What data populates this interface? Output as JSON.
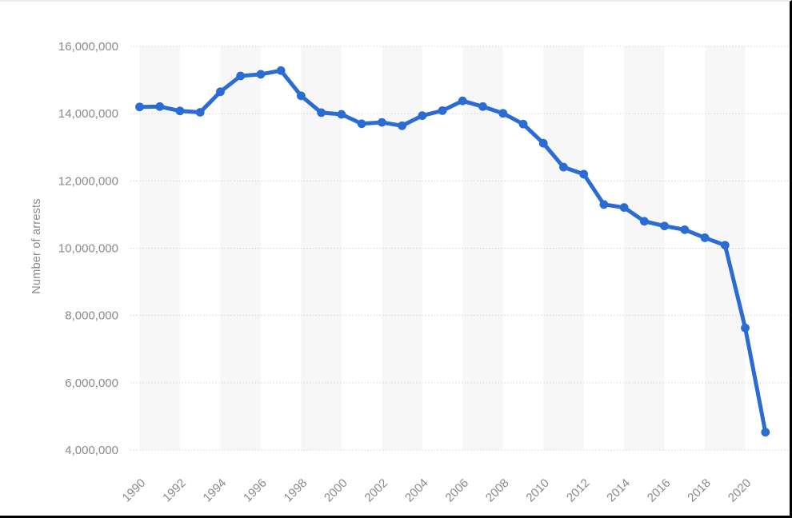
{
  "chart_data": {
    "type": "line",
    "title": "",
    "ylabel": "Number of arrests",
    "xlabel": "",
    "x": [
      1990,
      1991,
      1992,
      1993,
      1994,
      1995,
      1996,
      1997,
      1998,
      1999,
      2000,
      2001,
      2002,
      2003,
      2004,
      2005,
      2006,
      2007,
      2008,
      2009,
      2010,
      2011,
      2012,
      2013,
      2014,
      2015,
      2016,
      2017,
      2018,
      2019,
      2020,
      2021
    ],
    "series": [
      {
        "name": "Number of arrests",
        "color": "#2b6cd4",
        "values": [
          14200000,
          14210000,
          14080000,
          14040000,
          14650000,
          15120000,
          15170000,
          15280000,
          14530000,
          14030000,
          13980000,
          13700000,
          13740000,
          13640000,
          13940000,
          14090000,
          14380000,
          14210000,
          14010000,
          13690000,
          13120000,
          12410000,
          12200000,
          11300000,
          11210000,
          10800000,
          10660000,
          10550000,
          10310000,
          10090000,
          7630000,
          4530000
        ]
      }
    ],
    "ylim": [
      4000000,
      16000000
    ],
    "y_ticks": [
      {
        "value": 16000000,
        "label": "16,000,000"
      },
      {
        "value": 14000000,
        "label": "14,000,000"
      },
      {
        "value": 12000000,
        "label": "12,000,000"
      },
      {
        "value": 10000000,
        "label": "10,000,000"
      },
      {
        "value": 8000000,
        "label": "8,000,000"
      },
      {
        "value": 6000000,
        "label": "6,000,000"
      },
      {
        "value": 4000000,
        "label": "4,000,000"
      }
    ],
    "x_ticks": [
      {
        "year": 1990,
        "label": "1990"
      },
      {
        "year": 1992,
        "label": "1992"
      },
      {
        "year": 1994,
        "label": "1994"
      },
      {
        "year": 1996,
        "label": "1996"
      },
      {
        "year": 1998,
        "label": "1998"
      },
      {
        "year": 2000,
        "label": "2000"
      },
      {
        "year": 2002,
        "label": "2002"
      },
      {
        "year": 2004,
        "label": "2004"
      },
      {
        "year": 2006,
        "label": "2006"
      },
      {
        "year": 2008,
        "label": "2008"
      },
      {
        "year": 2010,
        "label": "2010"
      },
      {
        "year": 2012,
        "label": "2012"
      },
      {
        "year": 2014,
        "label": "2014"
      },
      {
        "year": 2016,
        "label": "2016"
      },
      {
        "year": 2018,
        "label": "2018"
      },
      {
        "year": 2020,
        "label": "2020"
      }
    ],
    "grid": "horizontal-dotted",
    "legend": "none",
    "plot_background": {
      "stripe_color": "#f7f7f7",
      "stripe_span_years": 2
    },
    "colors": {
      "line": "#2b6cd4",
      "grid": "#cccccc",
      "tick_text": "#8a8a8a",
      "frame_border": "#000000",
      "frame_top_border": "#ececec"
    }
  }
}
